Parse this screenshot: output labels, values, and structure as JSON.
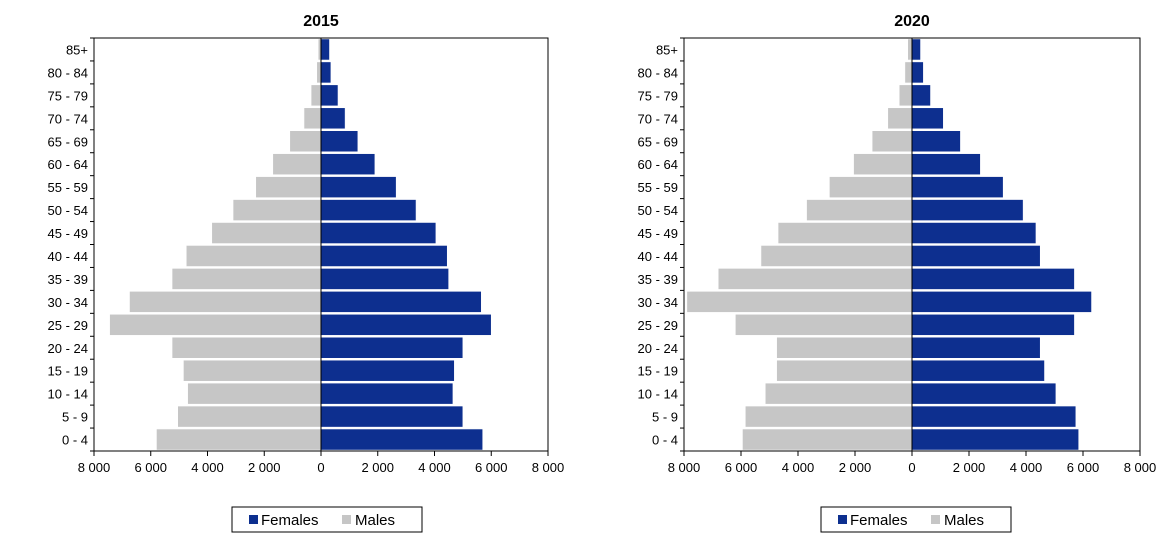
{
  "colors": {
    "females": "#0d2f8f",
    "males": "#c6c6c6",
    "axis": "#000000"
  },
  "chart_data": [
    {
      "type": "bar",
      "title": "2015",
      "orientation": "horizontal-pyramid",
      "categories": [
        "0 - 4",
        "5 - 9",
        "10 - 14",
        "15 - 19",
        "20 - 24",
        "25 - 29",
        "30 - 34",
        "35 - 39",
        "40 - 44",
        "45 - 49",
        "50 - 54",
        "55 - 59",
        "60 - 64",
        "65 - 69",
        "70 - 74",
        "75 - 79",
        "80 - 84",
        "85+"
      ],
      "series": [
        {
          "name": "Females",
          "values": [
            5700,
            5000,
            4650,
            4700,
            5000,
            6000,
            5650,
            4500,
            4450,
            4050,
            3350,
            2650,
            1900,
            1300,
            850,
            600,
            350,
            300
          ]
        },
        {
          "name": "Males",
          "values": [
            5800,
            5050,
            4700,
            4850,
            5250,
            7450,
            6750,
            5250,
            4750,
            3850,
            3100,
            2300,
            1700,
            1100,
            600,
            350,
            150,
            100
          ]
        }
      ],
      "xlim": [
        -8000,
        8000
      ],
      "xticks": [
        -8000,
        -6000,
        -4000,
        -2000,
        0,
        2000,
        4000,
        6000,
        8000
      ],
      "xtick_labels": [
        "8 000",
        "6 000",
        "4 000",
        "2 000",
        "0",
        "2 000",
        "4 000",
        "6 000",
        "8 000"
      ],
      "legend": [
        "Females",
        "Males"
      ],
      "legend_position": "bottom",
      "grid": false
    },
    {
      "type": "bar",
      "title": "2020",
      "orientation": "horizontal-pyramid",
      "categories": [
        "0 - 4",
        "5 - 9",
        "10 - 14",
        "15 - 19",
        "20 - 24",
        "25 - 29",
        "30 - 34",
        "35 - 39",
        "40 - 44",
        "45 - 49",
        "50 - 54",
        "55 - 59",
        "60 - 64",
        "65 - 69",
        "70 - 74",
        "75 - 79",
        "80 - 84",
        "85+"
      ],
      "series": [
        {
          "name": "Females",
          "values": [
            5850,
            5750,
            5050,
            4650,
            4500,
            5700,
            6300,
            5700,
            4500,
            4350,
            3900,
            3200,
            2400,
            1700,
            1100,
            650,
            400,
            300
          ]
        },
        {
          "name": "Males",
          "values": [
            5950,
            5850,
            5150,
            4750,
            4750,
            6200,
            7900,
            6800,
            5300,
            4700,
            3700,
            2900,
            2050,
            1400,
            850,
            450,
            250,
            150
          ]
        }
      ],
      "xlim": [
        -8000,
        8000
      ],
      "xticks": [
        -8000,
        -6000,
        -4000,
        -2000,
        0,
        2000,
        4000,
        6000,
        8000
      ],
      "xtick_labels": [
        "8 000",
        "6 000",
        "4 000",
        "2 000",
        "0",
        "2 000",
        "4 000",
        "6 000",
        "8 000"
      ],
      "legend": [
        "Females",
        "Males"
      ],
      "legend_position": "bottom",
      "grid": false
    }
  ]
}
